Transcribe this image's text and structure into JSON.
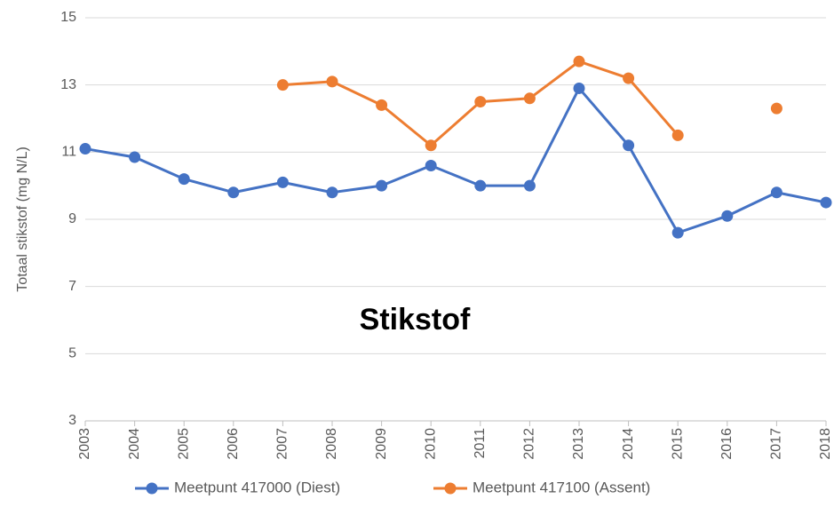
{
  "chart_data": {
    "type": "line",
    "title": "Stikstof",
    "y_label": "Totaal stikstof (mg N/L)",
    "x": [
      2003,
      2004,
      2005,
      2006,
      2007,
      2008,
      2009,
      2010,
      2011,
      2012,
      2013,
      2014,
      2015,
      2016,
      2017,
      2018
    ],
    "xlim": [
      2003,
      2018
    ],
    "xticks": [
      2003,
      2004,
      2005,
      2006,
      2007,
      2008,
      2009,
      2010,
      2011,
      2012,
      2013,
      2014,
      2015,
      2016,
      2017,
      2018
    ],
    "ylim": [
      3,
      15
    ],
    "yticks": [
      3,
      5,
      7,
      9,
      11,
      13,
      15
    ],
    "grid": true,
    "legend": "bottom",
    "series": [
      {
        "name": "Meetpunt 417000 (Diest)",
        "color": "#4472c4",
        "values": [
          11.1,
          10.85,
          10.2,
          9.8,
          10.1,
          9.8,
          10.0,
          10.6,
          10.0,
          10.0,
          12.9,
          11.2,
          8.6,
          9.1,
          9.8,
          9.5
        ]
      },
      {
        "name": "Meetpunt 417100 (Assent)",
        "color": "#ed7d31",
        "values": [
          null,
          null,
          null,
          null,
          13.0,
          13.1,
          12.4,
          11.2,
          12.5,
          12.6,
          13.7,
          13.2,
          11.5,
          null,
          12.3,
          null
        ]
      }
    ]
  }
}
